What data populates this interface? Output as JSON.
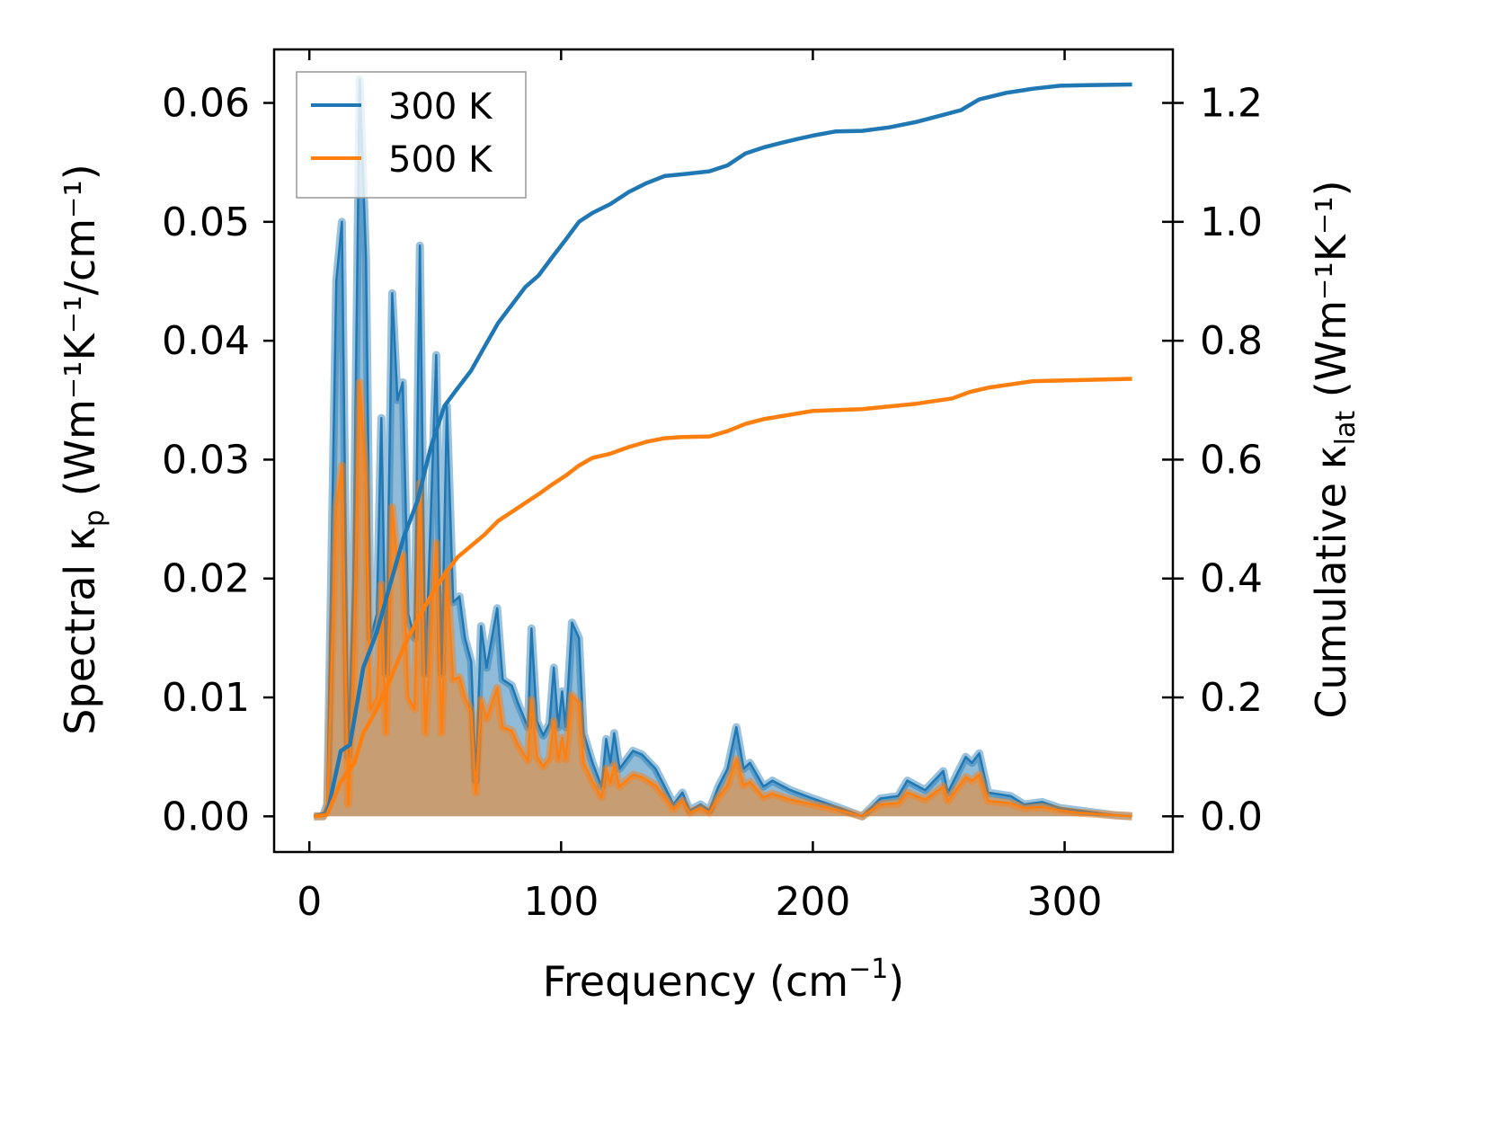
{
  "chart_data": {
    "type": "line",
    "xlabel": {
      "main": "Frequency (cm",
      "sup": "−1",
      "end": ")"
    },
    "ylabel_left": {
      "main": "Spectral κ",
      "sub": "p",
      "rest": " (Wm⁻¹K⁻¹/cm⁻¹)"
    },
    "ylabel_right": {
      "main": "Cumulative κ",
      "sub": "lat",
      "rest": " (Wm⁻¹K⁻¹)"
    },
    "xlim": [
      -14,
      343
    ],
    "ylim_left": [
      -0.003,
      0.0645
    ],
    "ylim_right": [
      -0.06,
      1.29
    ],
    "xticks": [
      0,
      100,
      200,
      300
    ],
    "yticks_left": [
      "0.00",
      "0.01",
      "0.02",
      "0.03",
      "0.04",
      "0.05",
      "0.06"
    ],
    "yticks_right": [
      "0.0",
      "0.2",
      "0.4",
      "0.6",
      "0.8",
      "1.0",
      "1.2"
    ],
    "legend": {
      "placement": "top-left",
      "entries": [
        "300 K",
        "500 K"
      ]
    },
    "colors": {
      "300 K": "#1f77b4",
      "500 K": "#ff7f0e"
    },
    "spectral": {
      "x": [
        1.8,
        5.4,
        7.1,
        10.7,
        12.9,
        15.4,
        17.5,
        20,
        22.5,
        24.3,
        26.8,
        28.6,
        30.4,
        32.9,
        35,
        37.1,
        39.3,
        41.8,
        43.9,
        46.1,
        48.2,
        50.4,
        52.5,
        54.6,
        57.1,
        59.6,
        61.8,
        64.3,
        66.1,
        68.2,
        70.4,
        74.6,
        76.8,
        80.4,
        82.9,
        86.8,
        88.2,
        90.4,
        92.9,
        95.4,
        97.1,
        98.9,
        100.4,
        101.8,
        104.3,
        107.1,
        108.9,
        112.5,
        116.1,
        117.9,
        119.6,
        121.1,
        123.2,
        128.6,
        132.1,
        137.5,
        141.1,
        144.6,
        148.2,
        151.1,
        155.4,
        158.9,
        162.5,
        166.1,
        169.6,
        172.5,
        175,
        180.4,
        183.9,
        191.1,
        200,
        210.7,
        219.6,
        226.8,
        233.9,
        237.5,
        244.6,
        251.8,
        253.6,
        260.7,
        263.2,
        266.1,
        269.6,
        278.6,
        283.9,
        291.1,
        298.2,
        305.4,
        319.6,
        326.8
      ],
      "series": [
        {
          "name": "300 K",
          "values": [
            0,
            0,
            0.001,
            0.045,
            0.05,
            0.005,
            0.02,
            0.062,
            0.047,
            0.015,
            0.017,
            0.0335,
            0.012,
            0.044,
            0.035,
            0.0365,
            0.017,
            0.015,
            0.048,
            0.012,
            0.025,
            0.0388,
            0.012,
            0.0345,
            0.018,
            0.0185,
            0.015,
            0.013,
            0.003,
            0.016,
            0.0125,
            0.0175,
            0.0115,
            0.011,
            0.0095,
            0.0075,
            0.0158,
            0.008,
            0.0068,
            0.0078,
            0.0125,
            0.0075,
            0.0105,
            0.0075,
            0.0163,
            0.015,
            0.007,
            0.0045,
            0.0025,
            0.0065,
            0.0045,
            0.007,
            0.004,
            0.0055,
            0.0052,
            0.004,
            0.0025,
            0.001,
            0.002,
            0.0005,
            0.001,
            0.0005,
            0.0025,
            0.004,
            0.0075,
            0.004,
            0.0045,
            0.0025,
            0.003,
            0.0022,
            0.0015,
            0.0007,
            0,
            0.0015,
            0.0017,
            0.003,
            0.0022,
            0.0038,
            0.002,
            0.005,
            0.0045,
            0.0053,
            0.002,
            0.0017,
            0.001,
            0.0012,
            0.0007,
            0.0005,
            0.0001,
            0
          ]
        },
        {
          "name": "500 K",
          "values": [
            0,
            0,
            0.0005,
            0.026,
            0.0295,
            0.001,
            0.012,
            0.0365,
            0.028,
            0.009,
            0.01,
            0.0195,
            0.007,
            0.026,
            0.021,
            0.022,
            0.01,
            0.009,
            0.028,
            0.007,
            0.015,
            0.023,
            0.007,
            0.0205,
            0.0115,
            0.0117,
            0.01,
            0.0088,
            0.002,
            0.0098,
            0.0082,
            0.0108,
            0.0075,
            0.0072,
            0.006,
            0.0047,
            0.0098,
            0.005,
            0.0042,
            0.0049,
            0.008,
            0.0048,
            0.0066,
            0.0048,
            0.0102,
            0.0095,
            0.0045,
            0.0029,
            0.0016,
            0.004,
            0.0028,
            0.0043,
            0.0025,
            0.0035,
            0.0033,
            0.0026,
            0.0016,
            0.0006,
            0.0013,
            0.0003,
            0.0007,
            0.0003,
            0.0016,
            0.0026,
            0.0048,
            0.0026,
            0.0029,
            0.0016,
            0.0019,
            0.0014,
            0.001,
            0.0005,
            0,
            0.001,
            0.0011,
            0.002,
            0.0014,
            0.0025,
            0.0013,
            0.0033,
            0.003,
            0.0035,
            0.0013,
            0.0011,
            0.0007,
            0.0008,
            0.0005,
            0.0003,
            0.0001,
            0
          ]
        }
      ]
    },
    "cumulative": [
      {
        "name": "300 K",
        "x": [
          1.8,
          7.1,
          12.5,
          16.1,
          21.4,
          26.8,
          32.1,
          37.5,
          42.9,
          48.2,
          53.6,
          58.9,
          64.3,
          69.6,
          75,
          80.4,
          85.7,
          91.1,
          96.4,
          101.8,
          107.1,
          112.5,
          119.6,
          126.8,
          133.9,
          141.1,
          148.2,
          158.9,
          166.1,
          173.2,
          180.4,
          187.5,
          194.6,
          200,
          208.9,
          219.6,
          230.4,
          241.1,
          251.8,
          258.9,
          266.1,
          276.8,
          287.5,
          298.2,
          308.9,
          326.8
        ],
        "values": [
          0,
          0.005,
          0.11,
          0.12,
          0.25,
          0.31,
          0.39,
          0.47,
          0.53,
          0.62,
          0.69,
          0.72,
          0.75,
          0.79,
          0.83,
          0.86,
          0.89,
          0.91,
          0.94,
          0.97,
          1.0,
          1.015,
          1.03,
          1.05,
          1.065,
          1.077,
          1.08,
          1.085,
          1.095,
          1.115,
          1.125,
          1.133,
          1.14,
          1.145,
          1.152,
          1.153,
          1.159,
          1.168,
          1.18,
          1.188,
          1.206,
          1.217,
          1.224,
          1.229,
          1.23,
          1.231
        ]
      },
      {
        "name": "500 K",
        "x": [
          1.8,
          7.1,
          12.5,
          17.9,
          21.4,
          26.8,
          32.1,
          37.5,
          42.9,
          48.2,
          53.6,
          58.9,
          64.3,
          69.6,
          75,
          80.4,
          85.7,
          91.1,
          96.4,
          101.8,
          107.1,
          112.5,
          119.6,
          126.8,
          133.9,
          141.1,
          148.2,
          158.9,
          166.1,
          173.2,
          180.4,
          187.5,
          200,
          219.6,
          241.1,
          255.4,
          262.5,
          269.6,
          287.5,
          326.8
        ],
        "values": [
          0,
          0.003,
          0.058,
          0.09,
          0.14,
          0.18,
          0.23,
          0.285,
          0.33,
          0.37,
          0.406,
          0.436,
          0.455,
          0.474,
          0.497,
          0.512,
          0.527,
          0.542,
          0.558,
          0.573,
          0.59,
          0.603,
          0.61,
          0.621,
          0.63,
          0.636,
          0.638,
          0.639,
          0.648,
          0.66,
          0.668,
          0.673,
          0.682,
          0.685,
          0.694,
          0.703,
          0.714,
          0.721,
          0.732,
          0.736
        ]
      }
    ]
  }
}
